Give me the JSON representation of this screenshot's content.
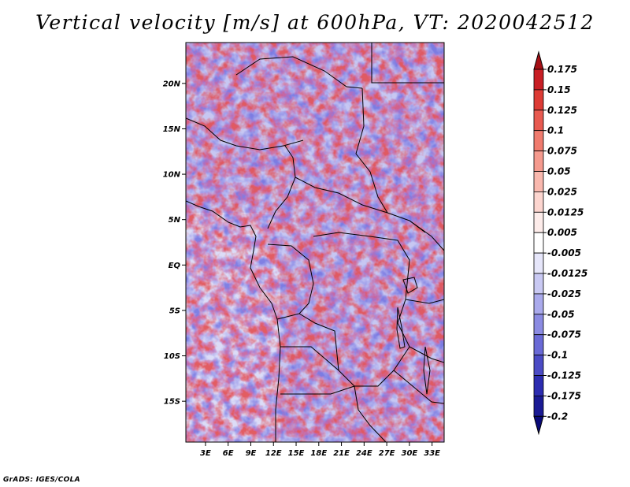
{
  "title": "Vertical velocity [m/s] at 600hPa, VT: 2020042512",
  "credit": "GrADS: IGES/COLA",
  "map": {
    "lat_labels": [
      "20N",
      "15N",
      "10N",
      "5N",
      "EQ",
      "5S",
      "10S",
      "15S"
    ],
    "lat_values": [
      20,
      15,
      10,
      5,
      0,
      -5,
      -10,
      -15
    ],
    "lon_labels": [
      "3E",
      "6E",
      "9E",
      "12E",
      "15E",
      "18E",
      "21E",
      "24E",
      "27E",
      "30E",
      "33E"
    ],
    "lon_values": [
      3,
      6,
      9,
      12,
      15,
      18,
      21,
      24,
      27,
      30,
      33
    ],
    "lat_range": [
      -19.5,
      24.5
    ],
    "lon_range": [
      0.4,
      34.6
    ]
  },
  "colorbar": {
    "labels": [
      "0.175",
      "0.15",
      "0.125",
      "0.1",
      "0.075",
      "0.05",
      "0.025",
      "0.0125",
      "0.005",
      "-0.005",
      "-0.0125",
      "-0.025",
      "-0.05",
      "-0.075",
      "-0.1",
      "-0.125",
      "-0.175",
      "-0.2"
    ],
    "colors": [
      "#a50f15",
      "#c81e24",
      "#dd3b35",
      "#e85a50",
      "#f07b6e",
      "#f59a8e",
      "#f9b8ae",
      "#fcd5cf",
      "#fdecea",
      "#ffffff",
      "#e6e6fa",
      "#c9c9f3",
      "#aaaaec",
      "#8b8be2",
      "#6a6ad6",
      "#4b4bc5",
      "#2c2cb0",
      "#1a1a94",
      "#0a0a78"
    ]
  }
}
